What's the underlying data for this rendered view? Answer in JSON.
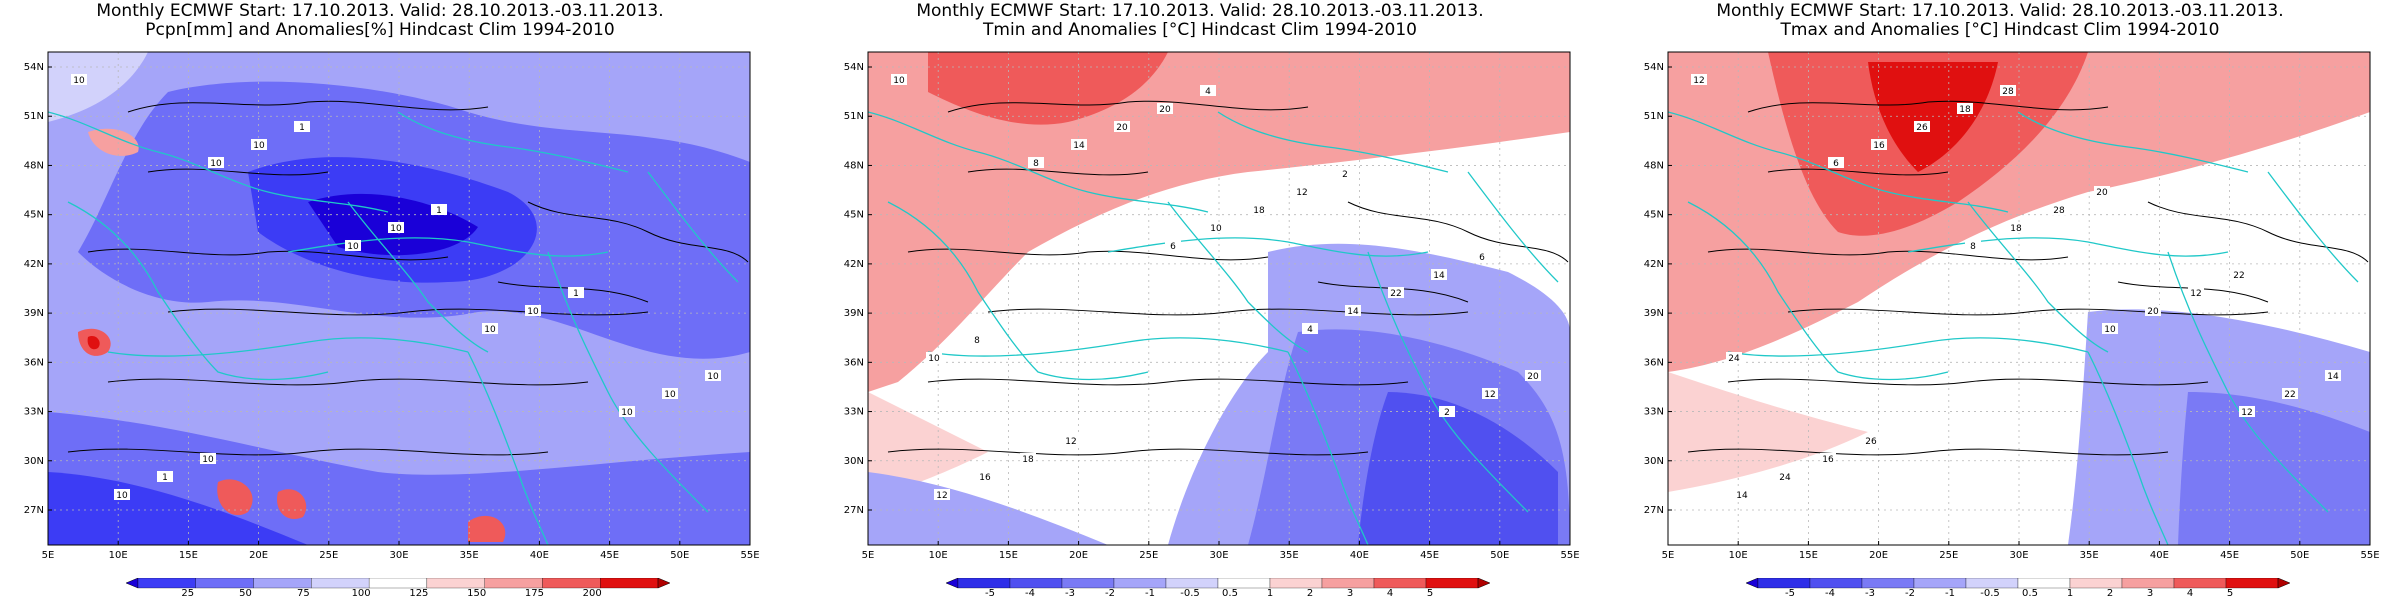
{
  "panels": [
    {
      "title_line1": "Monthly ECMWF Start: 17.10.2013. Valid: 28.10.2013.-03.11.2013.",
      "title_line2": "Pcpn[mm] and Anomalies[%] Hindcast Clim 1994-2010",
      "contour_labels": [
        "10",
        "10",
        "10",
        "10",
        "10",
        "10",
        "10",
        "10",
        "10",
        "10",
        "1",
        "1",
        "1",
        "1",
        "10",
        "10"
      ],
      "colorbar": {
        "ticks": [
          "25",
          "50",
          "75",
          "100",
          "125",
          "150",
          "175",
          "200"
        ],
        "colors": [
          "#1a00d8",
          "#3c3cf5",
          "#6e6ef7",
          "#a5a5f9",
          "#d2d2fb",
          "#ffffff",
          "#fbd2d2",
          "#f6a0a0",
          "#ef5a5a",
          "#e01010",
          "#b00000"
        ]
      }
    },
    {
      "title_line1": "Monthly ECMWF Start: 17.10.2013. Valid: 28.10.2013.-03.11.2013.",
      "title_line2": "Tmin and Anomalies [°C] Hindcast Clim 1994-2010",
      "contour_labels": [
        "10",
        "8",
        "6",
        "4",
        "2",
        "12",
        "14",
        "10",
        "14",
        "12",
        "16",
        "20",
        "18",
        "22",
        "20",
        "18",
        "20",
        "12",
        "14",
        "10",
        "12",
        "4",
        "2",
        "6",
        "8"
      ],
      "colorbar": {
        "ticks": [
          "-5",
          "-4",
          "-3",
          "-2",
          "-1",
          "-0.5",
          "0.5",
          "1",
          "2",
          "3",
          "4",
          "5"
        ],
        "colors": [
          "#1a00d8",
          "#2e2ee8",
          "#5050f0",
          "#7a7af5",
          "#a5a5f9",
          "#d2d2fb",
          "#ffffff",
          "#fbd2d2",
          "#f6a0a0",
          "#ef5a5a",
          "#e01010",
          "#b00000"
        ]
      }
    },
    {
      "title_line1": "Monthly ECMWF Start: 17.10.2013. Valid: 28.10.2013.-03.11.2013.",
      "title_line2": "Tmax and Anomalies [°C] Hindcast Clim 1994-2010",
      "contour_labels": [
        "12",
        "6",
        "8",
        "10",
        "12",
        "14",
        "16",
        "18",
        "20",
        "22",
        "24",
        "26",
        "28",
        "12",
        "14",
        "16",
        "18",
        "20",
        "22",
        "24",
        "26",
        "28"
      ],
      "colorbar": {
        "ticks": [
          "-5",
          "-4",
          "-3",
          "-2",
          "-1",
          "-0.5",
          "0.5",
          "1",
          "2",
          "3",
          "4",
          "5"
        ],
        "colors": [
          "#1a00d8",
          "#2e2ee8",
          "#5050f0",
          "#7a7af5",
          "#a5a5f9",
          "#d2d2fb",
          "#ffffff",
          "#fbd2d2",
          "#f6a0a0",
          "#ef5a5a",
          "#e01010",
          "#b00000"
        ]
      }
    }
  ],
  "lat_labels": [
    "54N",
    "51N",
    "48N",
    "45N",
    "42N",
    "39N",
    "36N",
    "33N",
    "30N",
    "27N"
  ],
  "lon_labels": [
    "5E",
    "10E",
    "15E",
    "20E",
    "25E",
    "30E",
    "35E",
    "40E",
    "45E",
    "50E",
    "55E"
  ],
  "colors": {
    "coast": "#20c8c8",
    "contour": "#000000",
    "grid": "#b8b8b8"
  }
}
